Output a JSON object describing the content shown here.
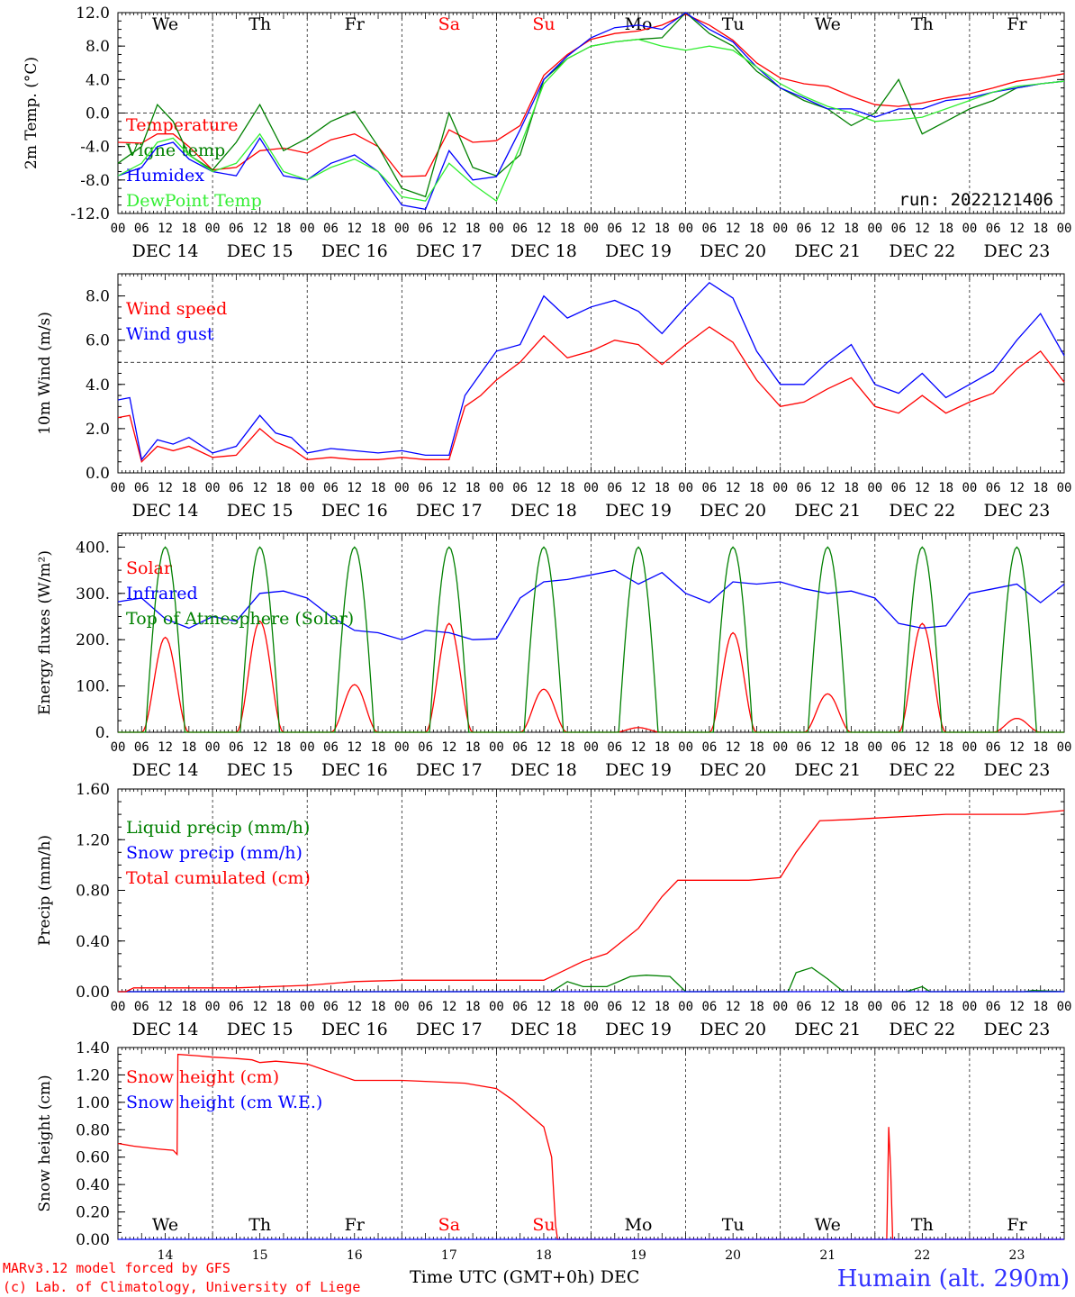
{
  "days": [
    "We",
    "Th",
    "Fr",
    "Sa",
    "Su",
    "Mo",
    "Tu",
    "We",
    "Th",
    "Fr"
  ],
  "weekend_days": [
    "Sa",
    "Su"
  ],
  "date_labels": [
    "DEC 14",
    "DEC 15",
    "DEC 16",
    "DEC 17",
    "DEC 18",
    "DEC 19",
    "DEC 20",
    "DEC 21",
    "DEC 22",
    "DEC 23"
  ],
  "hour_ticks": [
    "00",
    "06",
    "12",
    "18"
  ],
  "day_numbers": [
    "14",
    "15",
    "16",
    "17",
    "18",
    "19",
    "20",
    "21",
    "22",
    "23"
  ],
  "footer": {
    "model": "MARv3.12 model forced by GFS",
    "credit": "(c) Lab. of Climatology, University of Liege",
    "xlabel": "Time UTC (GMT+0h) DEC",
    "station": "Humain (alt. 290m)"
  },
  "colors": {
    "red": "#ff0000",
    "green": "#008000",
    "blue": "#0000ff",
    "lightgreen": "#33ee33",
    "station": "#3333ff"
  },
  "chart_data": [
    {
      "type": "line",
      "ylabel": "2m Temp. (°C)",
      "ylim": [
        -12,
        12
      ],
      "yticks": [
        "-12.0",
        "-8.0",
        "-4.0",
        "0.0",
        "4.0",
        "8.0",
        "12.0"
      ],
      "annotation": "run: 2022121406",
      "x_units": "hours since DEC 14 00 UTC",
      "grid": "vertical daily dashed lines, dashed zero line",
      "legend_position": "left",
      "series": [
        {
          "name": "Temperature",
          "color": "red",
          "x": [
            0,
            6,
            10,
            14,
            18,
            24,
            30,
            36,
            42,
            48,
            54,
            60,
            66,
            72,
            78,
            84,
            90,
            96,
            102,
            108,
            114,
            120,
            126,
            132,
            138,
            144,
            150,
            156,
            162,
            168,
            174,
            180,
            186,
            192,
            198,
            204,
            210,
            216,
            222,
            228,
            234,
            240
          ],
          "y": [
            -3.5,
            -3.6,
            -2.5,
            -2.5,
            -4.0,
            -6.8,
            -6.5,
            -4.5,
            -4.2,
            -4.8,
            -3.2,
            -2.5,
            -4.0,
            -7.6,
            -7.5,
            -2.0,
            -3.5,
            -3.3,
            -1.5,
            4.5,
            7.0,
            8.8,
            9.5,
            9.8,
            10.5,
            11.8,
            10.5,
            8.7,
            6.0,
            4.2,
            3.5,
            3.2,
            2.0,
            1.0,
            0.8,
            1.2,
            1.8,
            2.3,
            3.0,
            3.8,
            4.2,
            4.7
          ]
        },
        {
          "name": "Vigne temp",
          "color": "green",
          "x": [
            0,
            6,
            10,
            14,
            18,
            24,
            30,
            36,
            42,
            48,
            54,
            60,
            66,
            72,
            78,
            84,
            90,
            96,
            102,
            108,
            114,
            120,
            126,
            132,
            138,
            144,
            150,
            156,
            162,
            168,
            174,
            180,
            186,
            192,
            198,
            204,
            210,
            216,
            222,
            228,
            234,
            240
          ],
          "y": [
            -6.0,
            -4.0,
            1.0,
            -1.0,
            -5.0,
            -6.8,
            -3.5,
            1.0,
            -4.5,
            -3.0,
            -1.0,
            0.2,
            -4.0,
            -9.0,
            -10.0,
            0.0,
            -6.5,
            -7.5,
            -5.0,
            4.0,
            6.5,
            8.0,
            8.5,
            8.8,
            9.0,
            12.0,
            9.5,
            8.0,
            5.0,
            3.0,
            1.5,
            0.5,
            -1.5,
            0.0,
            4.0,
            -2.5,
            -1.0,
            0.5,
            1.5,
            3.0,
            3.5,
            3.8
          ]
        },
        {
          "name": "Humidex",
          "color": "blue",
          "x": [
            0,
            6,
            10,
            14,
            18,
            24,
            30,
            36,
            42,
            48,
            54,
            60,
            66,
            72,
            78,
            84,
            90,
            96,
            102,
            108,
            114,
            120,
            126,
            132,
            138,
            144,
            150,
            156,
            162,
            168,
            174,
            180,
            186,
            192,
            198,
            204,
            210,
            216,
            222,
            228,
            234,
            240
          ],
          "y": [
            -7.5,
            -6.5,
            -4.0,
            -3.5,
            -5.5,
            -7.0,
            -7.5,
            -3.0,
            -7.5,
            -8.0,
            -6.0,
            -5.0,
            -7.0,
            -11.0,
            -11.5,
            -4.5,
            -8.0,
            -7.6,
            -2.0,
            4.0,
            6.8,
            9.0,
            10.2,
            10.5,
            10.0,
            12.0,
            10.0,
            8.5,
            5.5,
            3.0,
            1.8,
            0.5,
            0.5,
            -0.5,
            0.5,
            0.5,
            1.5,
            1.8,
            2.5,
            3.0,
            3.5,
            3.8
          ]
        },
        {
          "name": "DewPoint Temp",
          "color": "lightgreen",
          "x": [
            0,
            6,
            10,
            14,
            18,
            24,
            30,
            36,
            42,
            48,
            54,
            60,
            66,
            72,
            78,
            84,
            90,
            96,
            102,
            108,
            114,
            120,
            126,
            132,
            138,
            144,
            150,
            156,
            162,
            168,
            174,
            180,
            186,
            192,
            198,
            204,
            210,
            216,
            222,
            228,
            234,
            240
          ],
          "y": [
            -7.5,
            -6.0,
            -3.5,
            -3.0,
            -5.0,
            -7.0,
            -6.0,
            -2.5,
            -7.0,
            -8.0,
            -6.5,
            -5.5,
            -7.0,
            -10.0,
            -10.5,
            -6.0,
            -8.5,
            -10.5,
            -4.0,
            3.5,
            6.5,
            8.0,
            8.5,
            8.8,
            8.0,
            7.5,
            8.0,
            7.5,
            5.5,
            3.5,
            2.0,
            0.8,
            0.0,
            -1.0,
            -0.8,
            -0.5,
            0.5,
            1.5,
            2.5,
            3.2,
            3.5,
            3.8
          ]
        }
      ]
    },
    {
      "type": "line",
      "ylabel": "10m Wind (m/s)",
      "ylim": [
        0,
        9
      ],
      "yticks": [
        "0.0",
        "2.0",
        "4.0",
        "6.0",
        "8.0"
      ],
      "reference_line": 5,
      "x_units": "hours since DEC 14 00 UTC",
      "legend_position": "left",
      "series": [
        {
          "name": "Wind speed",
          "color": "red",
          "x": [
            0,
            3,
            6,
            10,
            14,
            18,
            24,
            30,
            36,
            40,
            44,
            48,
            54,
            60,
            66,
            72,
            78,
            84,
            88,
            92,
            96,
            102,
            108,
            114,
            120,
            126,
            132,
            138,
            144,
            150,
            156,
            162,
            168,
            174,
            180,
            186,
            192,
            198,
            204,
            210,
            216,
            222,
            228,
            234,
            240
          ],
          "y": [
            2.5,
            2.6,
            0.5,
            1.2,
            1.0,
            1.2,
            0.7,
            0.8,
            2.0,
            1.4,
            1.1,
            0.6,
            0.7,
            0.6,
            0.6,
            0.7,
            0.6,
            0.6,
            3.0,
            3.5,
            4.2,
            5.0,
            6.2,
            5.2,
            5.5,
            6.0,
            5.8,
            4.9,
            5.8,
            6.6,
            5.9,
            4.2,
            3.0,
            3.2,
            3.8,
            4.3,
            3.0,
            2.7,
            3.5,
            2.7,
            3.2,
            3.6,
            4.7,
            5.5,
            4.1
          ]
        },
        {
          "name": "Wind gust",
          "color": "blue",
          "x": [
            0,
            3,
            6,
            10,
            14,
            18,
            24,
            30,
            36,
            40,
            44,
            48,
            54,
            60,
            66,
            72,
            78,
            84,
            88,
            92,
            96,
            102,
            108,
            114,
            120,
            126,
            132,
            138,
            144,
            150,
            156,
            162,
            168,
            174,
            180,
            186,
            192,
            198,
            204,
            210,
            216,
            222,
            228,
            234,
            240
          ],
          "y": [
            3.3,
            3.4,
            0.6,
            1.5,
            1.3,
            1.6,
            0.9,
            1.2,
            2.6,
            1.8,
            1.6,
            0.9,
            1.1,
            1.0,
            0.9,
            1.0,
            0.8,
            0.8,
            3.5,
            4.5,
            5.5,
            5.8,
            8.0,
            7.0,
            7.5,
            7.8,
            7.3,
            6.3,
            7.5,
            8.6,
            7.9,
            5.5,
            4.0,
            4.0,
            5.0,
            5.8,
            4.0,
            3.6,
            4.5,
            3.4,
            4.0,
            4.6,
            6.0,
            7.2,
            5.3
          ]
        }
      ]
    },
    {
      "type": "line",
      "ylabel": "Energy fluxes (W/m²)",
      "ylim": [
        0,
        430
      ],
      "yticks": [
        "0.",
        "100.",
        "200.",
        "300.",
        "400."
      ],
      "x_units": "hours since DEC 14 00 UTC",
      "legend_position": "left",
      "solar_peaks": [
        205,
        240,
        103,
        235,
        93,
        10,
        215,
        83,
        235,
        30
      ],
      "toa_peak": 400,
      "series": [
        {
          "name": "Solar",
          "color": "red",
          "note": "daily peaks listed in solar_peaks"
        },
        {
          "name": "Infrared",
          "color": "blue",
          "x": [
            0,
            6,
            12,
            18,
            24,
            30,
            36,
            42,
            48,
            54,
            60,
            66,
            72,
            78,
            84,
            90,
            96,
            102,
            108,
            114,
            120,
            126,
            132,
            138,
            144,
            150,
            156,
            162,
            168,
            174,
            180,
            186,
            192,
            198,
            204,
            210,
            216,
            222,
            228,
            234,
            240
          ],
          "y": [
            282,
            290,
            245,
            225,
            250,
            240,
            300,
            305,
            290,
            250,
            220,
            215,
            200,
            220,
            215,
            200,
            202,
            290,
            325,
            330,
            340,
            350,
            320,
            345,
            300,
            280,
            325,
            320,
            325,
            310,
            300,
            305,
            290,
            235,
            225,
            230,
            300,
            310,
            320,
            280,
            320
          ]
        },
        {
          "name": "Top of Atmesphere (Solar)",
          "color": "green",
          "note": "daily peaks at toa_peak"
        }
      ]
    },
    {
      "type": "line",
      "ylabel": "Precip (mm/h)",
      "ylim": [
        0,
        1.6
      ],
      "yticks": [
        "0.00",
        "0.40",
        "0.80",
        "1.20",
        "1.60"
      ],
      "x_units": "hours since DEC 14 00 UTC",
      "legend_position": "left",
      "series": [
        {
          "name": "Liquid precip (mm/h)",
          "color": "green",
          "x": [
            0,
            110,
            114,
            118,
            124,
            130,
            134,
            140,
            144,
            170,
            172,
            176,
            180,
            184,
            200,
            204,
            206,
            230,
            232,
            240
          ],
          "y": [
            0,
            0,
            0.08,
            0.04,
            0.04,
            0.12,
            0.13,
            0.12,
            0.0,
            0.0,
            0.15,
            0.19,
            0.1,
            0.0,
            0.0,
            0.04,
            0.0,
            0.0,
            0.01,
            0.0
          ]
        },
        {
          "name": "Snow precip (mm/h)",
          "color": "blue",
          "x": [
            0,
            240
          ],
          "y": [
            0,
            0
          ]
        },
        {
          "name": "Total cumulated (cm)",
          "color": "red",
          "x": [
            0,
            2,
            4,
            30,
            48,
            60,
            72,
            108,
            112,
            118,
            124,
            132,
            138,
            142,
            150,
            160,
            168,
            172,
            178,
            186,
            192,
            210,
            230,
            240
          ],
          "y": [
            0.0,
            0.0,
            0.03,
            0.03,
            0.05,
            0.08,
            0.09,
            0.09,
            0.15,
            0.24,
            0.3,
            0.5,
            0.75,
            0.88,
            0.88,
            0.88,
            0.9,
            1.1,
            1.35,
            1.36,
            1.37,
            1.4,
            1.4,
            1.43
          ]
        }
      ]
    },
    {
      "type": "line",
      "ylabel": "Snow height (cm)",
      "ylim": [
        0,
        1.4
      ],
      "yticks": [
        "0.00",
        "0.20",
        "0.40",
        "0.60",
        "0.80",
        "1.00",
        "1.20",
        "1.40"
      ],
      "x_units": "hours since DEC 14 00 UTC",
      "legend_position": "left",
      "series": [
        {
          "name": "Snow height (cm)",
          "color": "red",
          "x": [
            0,
            4,
            10,
            14,
            15,
            15.2,
            20,
            24,
            30,
            34,
            36,
            40,
            44,
            48,
            54,
            60,
            66,
            72,
            80,
            88,
            96,
            100,
            104,
            108,
            110,
            111,
            111.5,
            190,
            195,
            195.5,
            196,
            196.5,
            197,
            240
          ],
          "y": [
            0.7,
            0.68,
            0.66,
            0.65,
            0.62,
            1.35,
            1.34,
            1.33,
            1.32,
            1.31,
            1.29,
            1.3,
            1.29,
            1.28,
            1.22,
            1.16,
            1.16,
            1.16,
            1.15,
            1.14,
            1.1,
            1.02,
            0.92,
            0.82,
            0.6,
            0.1,
            0.0,
            0.0,
            0.0,
            0.82,
            0.5,
            0.0,
            0.0,
            0.0
          ]
        },
        {
          "name": "Snow height (cm W.E.)",
          "color": "blue",
          "x": [
            0,
            240
          ],
          "y": [
            0,
            0
          ]
        }
      ]
    }
  ]
}
